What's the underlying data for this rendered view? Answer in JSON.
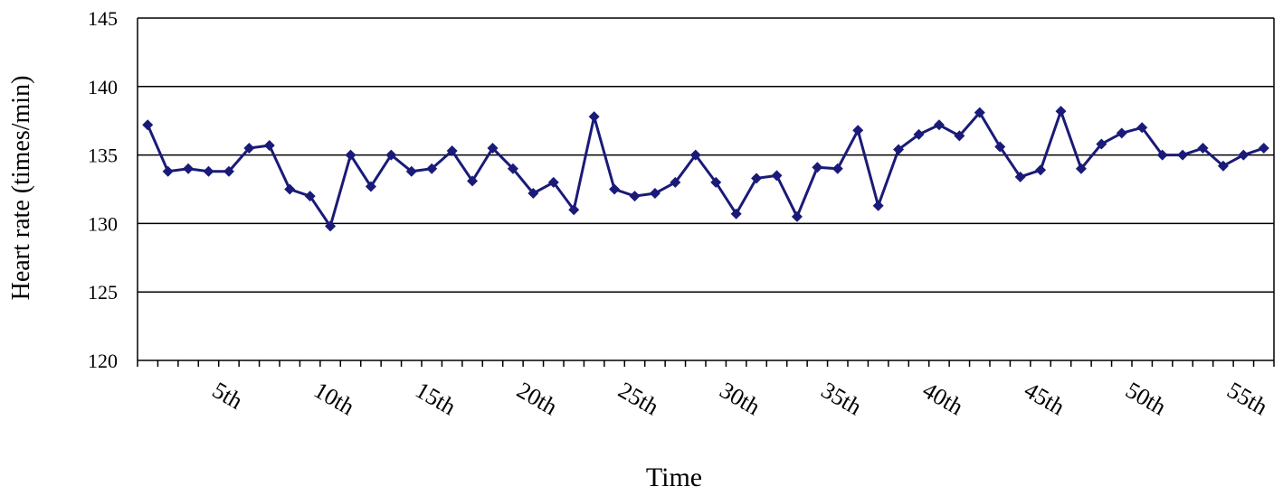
{
  "chart_data": {
    "type": "line",
    "x_label": "Time",
    "y_label": "Heart rate (times/min)",
    "categories": [
      null,
      null,
      null,
      null,
      "5th",
      null,
      null,
      null,
      null,
      "10th",
      null,
      null,
      null,
      null,
      "15th",
      null,
      null,
      null,
      null,
      "20th",
      null,
      null,
      null,
      null,
      "25th",
      null,
      null,
      null,
      null,
      "30th",
      null,
      null,
      null,
      null,
      "35th",
      null,
      null,
      null,
      null,
      "40th",
      null,
      null,
      null,
      null,
      "45th",
      null,
      null,
      null,
      null,
      "50th",
      null,
      null,
      null,
      null,
      "55th",
      null
    ],
    "series": [
      {
        "color": "#1a1a78",
        "values": [
          137.2,
          133.8,
          134.0,
          133.8,
          133.8,
          135.5,
          135.7,
          132.5,
          132.0,
          129.8,
          135.0,
          132.7,
          135.0,
          133.8,
          134.0,
          135.3,
          133.1,
          135.5,
          134.0,
          132.2,
          133.0,
          131.0,
          137.8,
          132.5,
          132.0,
          132.2,
          133.0,
          135.0,
          133.0,
          130.7,
          133.3,
          133.5,
          130.5,
          134.1,
          134.0,
          136.8,
          131.3,
          135.4,
          136.5,
          137.2,
          136.4,
          138.1,
          135.6,
          133.4,
          133.9,
          138.2,
          134.0,
          135.8,
          136.6,
          137.0,
          135.0,
          135.0,
          135.5,
          134.2,
          135.0,
          135.5
        ]
      }
    ],
    "ylim": [
      120,
      145
    ],
    "yticks": [
      120,
      125,
      130,
      135,
      140,
      145
    ],
    "grid": true
  }
}
